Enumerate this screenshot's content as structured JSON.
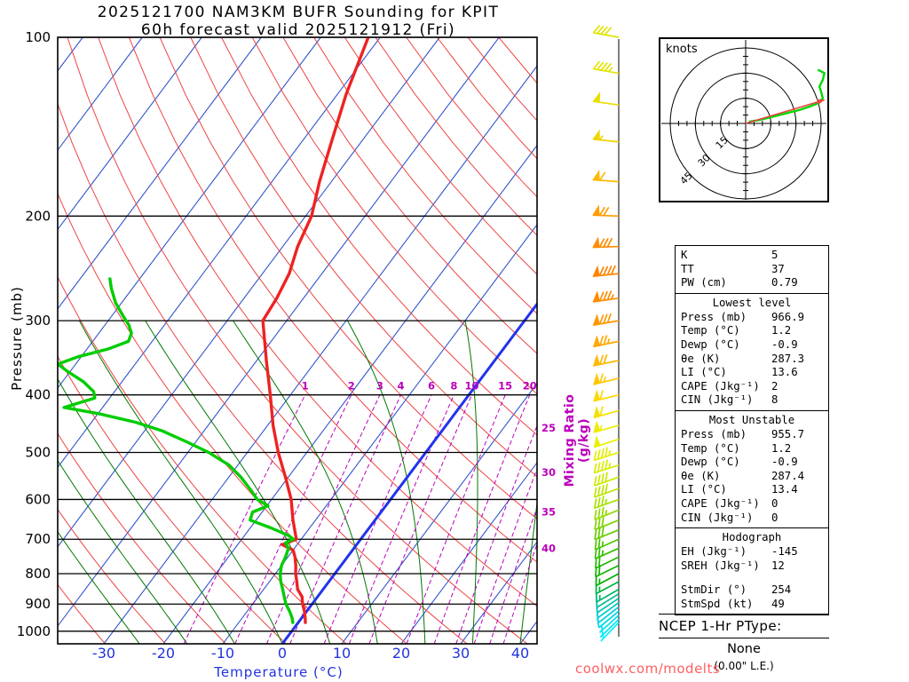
{
  "title": {
    "line1": "2025121700 NAM3KM BUFR Sounding for KPIT",
    "line2": "60h forecast valid 2025121912 (Fri)"
  },
  "axes": {
    "pressure_label": "Pressure (mb)",
    "temperature_label": "Temperature (°C)",
    "mixing_label": "Mixing Ratio (g/kg)"
  },
  "watermark": {
    "text": "coolwx.com/modelts"
  },
  "ptype": {
    "heading": "NCEP 1-Hr PType:",
    "value": "None",
    "note": "(0.00\" L.E.)"
  },
  "colors": {
    "isotherm": "#3355cc",
    "isotherm_zero": "#2233ee",
    "dry_adiabat": "#ee4444",
    "moist_adiabat": "#007800",
    "mixing_ratio": "#bb00bb",
    "temp_curve": "#ee2222",
    "dew_curve": "#00cc00",
    "grid": "#000000",
    "tick_blue": "#2233dd",
    "hodo_trace": "#00d800",
    "hodo_storm": "#ee4444",
    "watermark": "#ff6060"
  },
  "chart_data": {
    "type": "line",
    "subtype": "skew-t log-p sounding",
    "title": "2025121700 NAM3KM BUFR Sounding for KPIT — 60h forecast valid 2025121912 (Fri)",
    "x_axis": {
      "label": "Temperature (°C)",
      "ticks": [
        -30,
        -20,
        -10,
        0,
        10,
        20,
        30,
        40
      ]
    },
    "y_axis": {
      "label": "Pressure (mb)",
      "scale": "log",
      "ticks": [
        100,
        200,
        300,
        400,
        500,
        600,
        700,
        800,
        900,
        1000
      ],
      "range": [
        100,
        1050
      ]
    },
    "grid": "skew-t background: isotherms, dry/moist adiabats, mixing-ratio lines",
    "isotherms_c": {
      "min": -120,
      "max": 50,
      "step": 10,
      "highlight": 0
    },
    "dry_adiabats_theta_k": {
      "min": 240,
      "max": 450,
      "step": 10
    },
    "moist_adiabats_surface_c": [
      -24,
      -16,
      -8,
      0,
      8,
      16,
      24,
      32,
      40
    ],
    "mixing_ratio_g_kg": [
      1,
      2,
      3,
      4,
      6,
      8,
      10,
      15,
      20,
      25,
      30,
      35,
      40
    ],
    "temperature_profile": {
      "pressure_mb": [
        967,
        950,
        925,
        900,
        875,
        850,
        825,
        800,
        775,
        750,
        730,
        715,
        700,
        690,
        650,
        600,
        550,
        500,
        450,
        400,
        350,
        300,
        275,
        250,
        225,
        200,
        175,
        150,
        125,
        100
      ],
      "temp_c": [
        1.2,
        0.6,
        -0.4,
        -1.6,
        -2.6,
        -4.3,
        -5.4,
        -6.6,
        -7.6,
        -8.8,
        -10.0,
        -12.5,
        -10.8,
        -11.4,
        -13.8,
        -16.7,
        -20.5,
        -24.8,
        -29.1,
        -33.4,
        -38.4,
        -44.0,
        -44.5,
        -45.5,
        -47.5,
        -49.0,
        -52.0,
        -55.0,
        -58.5,
        -62.0
      ]
    },
    "dewpoint_profile": {
      "pressure_mb": [
        967,
        950,
        925,
        900,
        875,
        850,
        825,
        800,
        775,
        750,
        725,
        710,
        700,
        690,
        670,
        650,
        630,
        615,
        600,
        580,
        550,
        525,
        500,
        480,
        460,
        445,
        430,
        420,
        405,
        395,
        380,
        365,
        355,
        345,
        335,
        325,
        315,
        305,
        295,
        280,
        265,
        255
      ],
      "dewp_c": [
        -0.9,
        -1.6,
        -2.9,
        -4.4,
        -5.6,
        -6.8,
        -8.1,
        -9.2,
        -10.0,
        -10.4,
        -11.0,
        -12.2,
        -11.3,
        -12.6,
        -16.5,
        -21.0,
        -21.6,
        -19.8,
        -22.4,
        -24.5,
        -28.0,
        -31.5,
        -36.5,
        -41.5,
        -47.0,
        -52.5,
        -60.0,
        -66.5,
        -62.5,
        -63.5,
        -66.5,
        -70.5,
        -73.0,
        -70.5,
        -66.5,
        -64.0,
        -64.5,
        -66.0,
        -68.0,
        -71.0,
        -73.5,
        -75.0
      ]
    },
    "wind_barbs": {
      "columns": [
        "pressure_mb",
        "speed_kt",
        "direction_deg",
        "color"
      ],
      "rows": [
        [
          100,
          40,
          280,
          "#e0e400"
        ],
        [
          115,
          44,
          280,
          "#e4e400"
        ],
        [
          130,
          48,
          278,
          "#eade00"
        ],
        [
          150,
          53,
          276,
          "#f0d400"
        ],
        [
          175,
          62,
          274,
          "#ffb800"
        ],
        [
          200,
          72,
          272,
          "#ff9c00"
        ],
        [
          225,
          82,
          268,
          "#ff8c00"
        ],
        [
          250,
          90,
          264,
          "#ff8400"
        ],
        [
          275,
          86,
          262,
          "#ff8c00"
        ],
        [
          300,
          80,
          260,
          "#ff9800"
        ],
        [
          325,
          75,
          258,
          "#ffa800"
        ],
        [
          350,
          70,
          258,
          "#ffb800"
        ],
        [
          375,
          66,
          256,
          "#ffc800"
        ],
        [
          400,
          62,
          256,
          "#ffd800"
        ],
        [
          425,
          58,
          254,
          "#f4e000"
        ],
        [
          450,
          54,
          254,
          "#f0ec00"
        ],
        [
          475,
          50,
          252,
          "#ecf000"
        ],
        [
          500,
          47,
          252,
          "#e4ee00"
        ],
        [
          525,
          44,
          252,
          "#d8ec00"
        ],
        [
          550,
          41,
          250,
          "#ccea00"
        ],
        [
          575,
          38,
          250,
          "#bce600"
        ],
        [
          600,
          35,
          250,
          "#a8e000"
        ],
        [
          625,
          33,
          248,
          "#94da00"
        ],
        [
          650,
          31,
          248,
          "#7cd400"
        ],
        [
          675,
          29,
          248,
          "#64cc00"
        ],
        [
          700,
          26,
          246,
          "#4cc600"
        ],
        [
          725,
          24,
          246,
          "#38c000"
        ],
        [
          750,
          21,
          244,
          "#24ba00"
        ],
        [
          775,
          19,
          244,
          "#10b400"
        ],
        [
          800,
          17,
          242,
          "#00b000"
        ],
        [
          825,
          15,
          242,
          "#00b43c"
        ],
        [
          850,
          14,
          240,
          "#00b868"
        ],
        [
          865,
          12,
          238,
          "#00bc8c"
        ],
        [
          880,
          11,
          236,
          "#00c2ac"
        ],
        [
          895,
          10,
          234,
          "#00c8c8"
        ],
        [
          910,
          9,
          232,
          "#00d0dc"
        ],
        [
          925,
          8,
          230,
          "#00d8ea"
        ],
        [
          940,
          7,
          228,
          "#00e0f4"
        ],
        [
          955,
          6,
          226,
          "#00e8fa"
        ],
        [
          967,
          5,
          224,
          "#00f0ff"
        ]
      ]
    },
    "mixing_ratio_labels": [
      "1",
      "2",
      "3",
      "4",
      "6",
      "8",
      "10",
      "15",
      "20",
      "25",
      "30",
      "35",
      "40"
    ],
    "hodograph": {
      "units_label": "knots",
      "rings_kt": [
        15,
        30,
        45
      ],
      "ring_labels": [
        "15",
        "30",
        "45"
      ],
      "trace_uv_kt": [
        [
          2,
          1
        ],
        [
          8,
          2
        ],
        [
          16,
          4
        ],
        [
          24,
          6
        ],
        [
          32,
          8
        ],
        [
          38,
          10
        ],
        [
          43,
          12
        ],
        [
          46,
          15
        ],
        [
          45,
          19
        ],
        [
          44,
          22
        ],
        [
          46,
          26
        ],
        [
          47,
          30
        ],
        [
          43,
          32
        ]
      ],
      "storm_motion_uv_kt": [
        47,
        14
      ],
      "storm_dir_deg": 254,
      "storm_spd_kt": 49
    }
  },
  "stats_table": {
    "sections": [
      {
        "header": null,
        "rows": [
          [
            "K",
            "5"
          ],
          [
            "TT",
            "37"
          ],
          [
            "PW (cm)",
            "0.79"
          ]
        ]
      },
      {
        "header": "Lowest level",
        "rows": [
          [
            "Press (mb)",
            "966.9"
          ],
          [
            "Temp (°C)",
            "1.2"
          ],
          [
            "Dewp (°C)",
            "-0.9"
          ],
          [
            "θe (K)",
            "287.3"
          ],
          [
            "LI (°C)",
            "13.6"
          ],
          [
            "CAPE (Jkg⁻¹)",
            "2"
          ],
          [
            "CIN (Jkg⁻¹)",
            "8"
          ]
        ]
      },
      {
        "header": "Most Unstable",
        "rows": [
          [
            "Press (mb)",
            "955.7"
          ],
          [
            "Temp (°C)",
            "1.2"
          ],
          [
            "Dewp (°C)",
            "-0.9"
          ],
          [
            "θe (K)",
            "287.4"
          ],
          [
            "LI (°C)",
            "13.4"
          ],
          [
            "CAPE (Jkg⁻¹)",
            "0"
          ],
          [
            "CIN (Jkg⁻¹)",
            "0"
          ]
        ]
      },
      {
        "header": "Hodograph",
        "rows": [
          [
            "EH (Jkg⁻¹)",
            "-145"
          ],
          [
            "SREH (Jkg⁻¹)",
            "12"
          ],
          [
            "",
            ""
          ],
          [
            "StmDir (°)",
            "254"
          ],
          [
            "StmSpd (kt)",
            "49"
          ]
        ]
      }
    ]
  }
}
